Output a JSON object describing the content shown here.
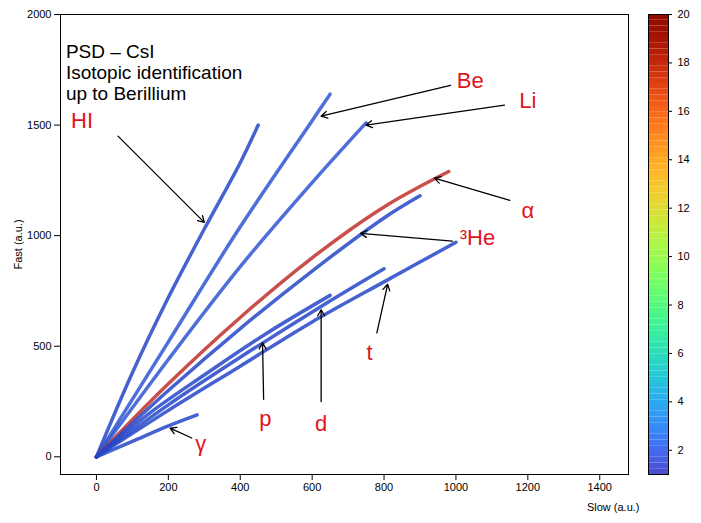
{
  "chart_data": {
    "type": "line",
    "xlabel": "Slow (a.u.)",
    "ylabel": "Fast (a.u.)",
    "xlim": [
      -100,
      1480
    ],
    "xticks": [
      0,
      200,
      400,
      600,
      800,
      1000,
      1200,
      1400
    ],
    "ylim": [
      -80,
      2000
    ],
    "yticks": [
      0,
      500,
      1000,
      1500,
      2000
    ],
    "grid": false,
    "colorbar": {
      "range": [
        1,
        20
      ],
      "ticks": [
        2,
        4,
        6,
        8,
        10,
        12,
        14,
        16,
        18,
        20
      ]
    },
    "annotations": [
      {
        "text": "PSD – CsI",
        "x": -85,
        "y": 1830
      },
      {
        "text": "Isotopic identification",
        "x": -85,
        "y": 1735
      },
      {
        "text": "up to Berillium",
        "x": -85,
        "y": 1640
      }
    ],
    "series": [
      {
        "name": "HI",
        "color": "#2446c8",
        "x": [
          0,
          100,
          200,
          300,
          400,
          450
        ],
        "values": [
          0,
          380,
          720,
          1030,
          1330,
          1500
        ],
        "label_x": -40,
        "label_y": 1520,
        "arrow": [
          60,
          1450,
          300,
          1060
        ]
      },
      {
        "name": "Be",
        "color": "#2f55d4",
        "x": [
          0,
          200,
          400,
          600,
          650
        ],
        "values": [
          0,
          520,
          1040,
          1520,
          1640
        ],
        "label_x": 1040,
        "label_y": 1700,
        "arrow": [
          985,
          1680,
          625,
          1540
        ]
      },
      {
        "name": "Li",
        "color": "#2f55d4",
        "x": [
          0,
          200,
          400,
          600,
          750
        ],
        "values": [
          0,
          440,
          860,
          1240,
          1510
        ],
        "label_x": 1200,
        "label_y": 1610,
        "arrow": [
          1135,
          1590,
          750,
          1500
        ]
      },
      {
        "name": "α",
        "color": "#c0302a",
        "x": [
          0,
          200,
          400,
          600,
          800,
          980
        ],
        "values": [
          0,
          330,
          630,
          900,
          1130,
          1290
        ],
        "label_x": 1200,
        "label_y": 1110,
        "arrow": [
          1150,
          1160,
          940,
          1260
        ]
      },
      {
        "name": "³He",
        "color": "#2446c8",
        "x": [
          0,
          200,
          400,
          600,
          800,
          900
        ],
        "values": [
          0,
          300,
          580,
          840,
          1080,
          1180
        ],
        "label_x": 1060,
        "label_y": 990,
        "arrow": [
          990,
          975,
          735,
          1010
        ]
      },
      {
        "name": "p",
        "color": "#2446c8",
        "x": [
          0,
          150,
          300,
          475,
          650
        ],
        "values": [
          0,
          200,
          370,
          560,
          730
        ],
        "label_x": 470,
        "label_y": 170,
        "arrow": [
          465,
          260,
          462,
          515
        ]
      },
      {
        "name": "d",
        "color": "#2446c8",
        "x": [
          0,
          200,
          400,
          625,
          800
        ],
        "values": [
          0,
          235,
          450,
          680,
          850
        ],
        "label_x": 625,
        "label_y": 150,
        "arrow": [
          625,
          250,
          625,
          665
        ]
      },
      {
        "name": "t",
        "color": "#2446c8",
        "x": [
          0,
          200,
          400,
          600,
          810,
          1000
        ],
        "values": [
          0,
          210,
          410,
          610,
          800,
          970
        ],
        "label_x": 760,
        "label_y": 470,
        "arrow": [
          780,
          560,
          810,
          780
        ]
      },
      {
        "name": "γ",
        "color": "#2446c8",
        "x": [
          0,
          100,
          200,
          280
        ],
        "values": [
          0,
          70,
          140,
          190
        ],
        "label_x": 290,
        "label_y": 60,
        "arrow": [
          265,
          85,
          205,
          130
        ]
      }
    ]
  }
}
